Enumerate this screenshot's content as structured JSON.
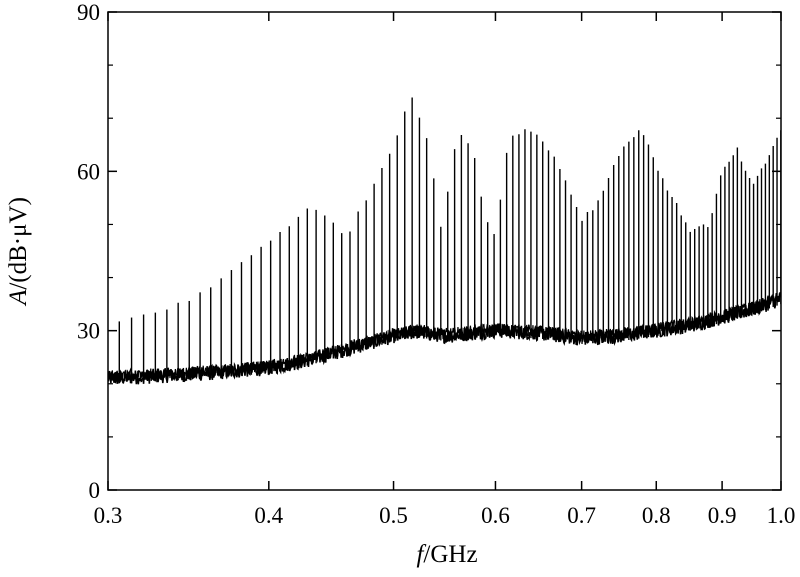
{
  "chart_data": {
    "type": "line",
    "title": "",
    "xlabel": {
      "italic": "f",
      "rest": "/GHz"
    },
    "ylabel": {
      "italic": "A",
      "rest": "/(dB·μV)"
    },
    "x_scale": "log",
    "xlim": [
      0.3,
      1.0
    ],
    "ylim": [
      0,
      90
    ],
    "x_ticks": [
      0.3,
      0.4,
      0.5,
      0.6,
      0.7,
      0.8,
      0.9,
      1.0
    ],
    "x_tick_labels": [
      "0.3",
      "0.4",
      "0.5",
      "0.6",
      "0.7",
      "0.8",
      "0.9",
      "1.0"
    ],
    "y_ticks": [
      0,
      30,
      60,
      90
    ],
    "y_tick_labels": [
      "0",
      "30",
      "60",
      "90"
    ],
    "y_minor_step": 10,
    "grid": false,
    "legend": "none",
    "line_color": "#000000",
    "series": [
      {
        "description": "noise floor",
        "x": [
          0.3,
          0.33,
          0.36,
          0.4,
          0.43,
          0.46,
          0.5,
          0.52,
          0.55,
          0.6,
          0.65,
          0.7,
          0.75,
          0.8,
          0.85,
          0.9,
          0.95,
          1.0
        ],
        "y": [
          21,
          21.5,
          22,
          23,
          24.5,
          26.5,
          29,
          29.8,
          29,
          30,
          29.5,
          28.5,
          29,
          30,
          31,
          32.5,
          34,
          36
        ]
      },
      {
        "description": "spike peaks",
        "x": [
          0.3,
          0.35,
          0.4,
          0.43,
          0.44,
          0.46,
          0.5,
          0.515,
          0.53,
          0.545,
          0.56,
          0.575,
          0.59,
          0.6,
          0.615,
          0.64,
          0.67,
          0.7,
          0.72,
          0.75,
          0.78,
          0.81,
          0.85,
          0.88,
          0.9,
          0.925,
          0.95,
          0.97,
          1.0
        ],
        "y": [
          31,
          36,
          47,
          53,
          52,
          48,
          65,
          75,
          67,
          49,
          67,
          65,
          51,
          48,
          67,
          68,
          62,
          51,
          54,
          64,
          68,
          58,
          49,
          50,
          60,
          64,
          57,
          61,
          68
        ]
      }
    ],
    "spike_spacing_ghz": 0.0068
  }
}
